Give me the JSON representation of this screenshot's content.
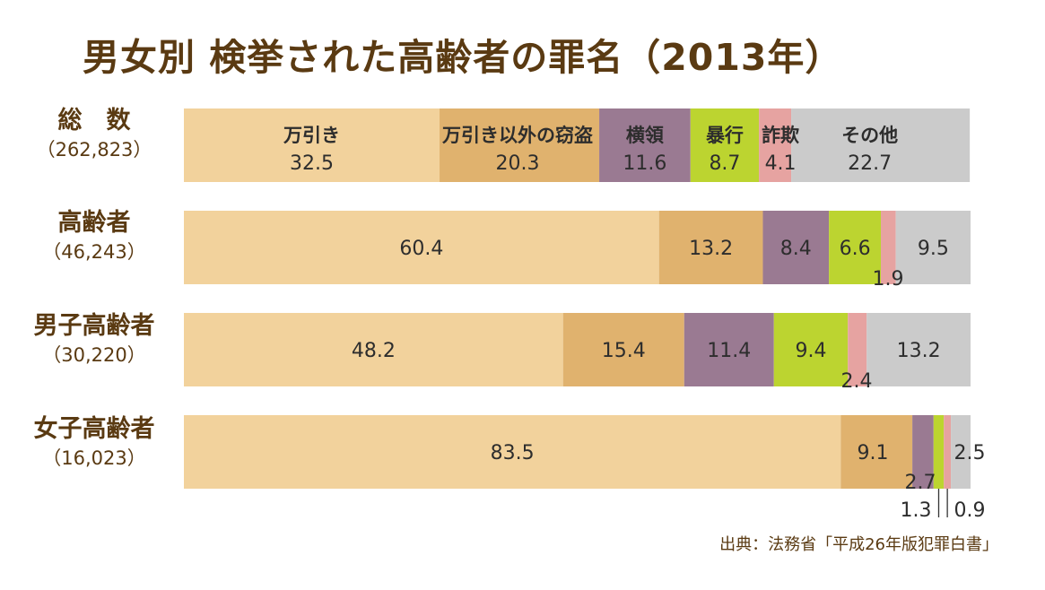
{
  "title": "男女別 検挙された高齢者の罪名（2013年）",
  "source": "出典：法務省「平成26年版犯罪白書」",
  "colors": {
    "万引き": "#f2d29c",
    "万引き以外の窃盗": "#e0b26e",
    "横領": "#9a7a92",
    "暴行": "#bcd430",
    "詐欺": "#e6a3a1",
    "その他": "#cbcbcb"
  },
  "rows": [
    {
      "name": "総　数",
      "count": "（262,823）"
    },
    {
      "name": "高齢者",
      "count": "（46,243）"
    },
    {
      "name": "男子高齢者",
      "count": "（30,220）"
    },
    {
      "name": "女子高齢者",
      "count": "（16,023）"
    }
  ],
  "chart_data": {
    "type": "bar",
    "orientation": "horizontal",
    "stacked": true,
    "unit": "%",
    "title": "男女別 検挙された高齢者の罪名（2013年）",
    "categories": [
      "総　数（262,823）",
      "高齢者（46,243）",
      "男子高齢者（30,220）",
      "女子高齢者（16,023）"
    ],
    "series": [
      {
        "name": "万引き",
        "values": [
          32.5,
          60.4,
          48.2,
          83.5
        ]
      },
      {
        "name": "万引き以外の窃盗",
        "values": [
          20.3,
          13.2,
          15.4,
          9.1
        ]
      },
      {
        "name": "横領",
        "values": [
          11.6,
          8.4,
          11.4,
          2.7
        ]
      },
      {
        "name": "暴行",
        "values": [
          8.7,
          6.6,
          9.4,
          1.3
        ]
      },
      {
        "name": "詐欺",
        "values": [
          4.1,
          1.9,
          2.4,
          0.9
        ]
      },
      {
        "name": "その他",
        "values": [
          22.7,
          9.5,
          13.2,
          2.5
        ]
      }
    ]
  }
}
